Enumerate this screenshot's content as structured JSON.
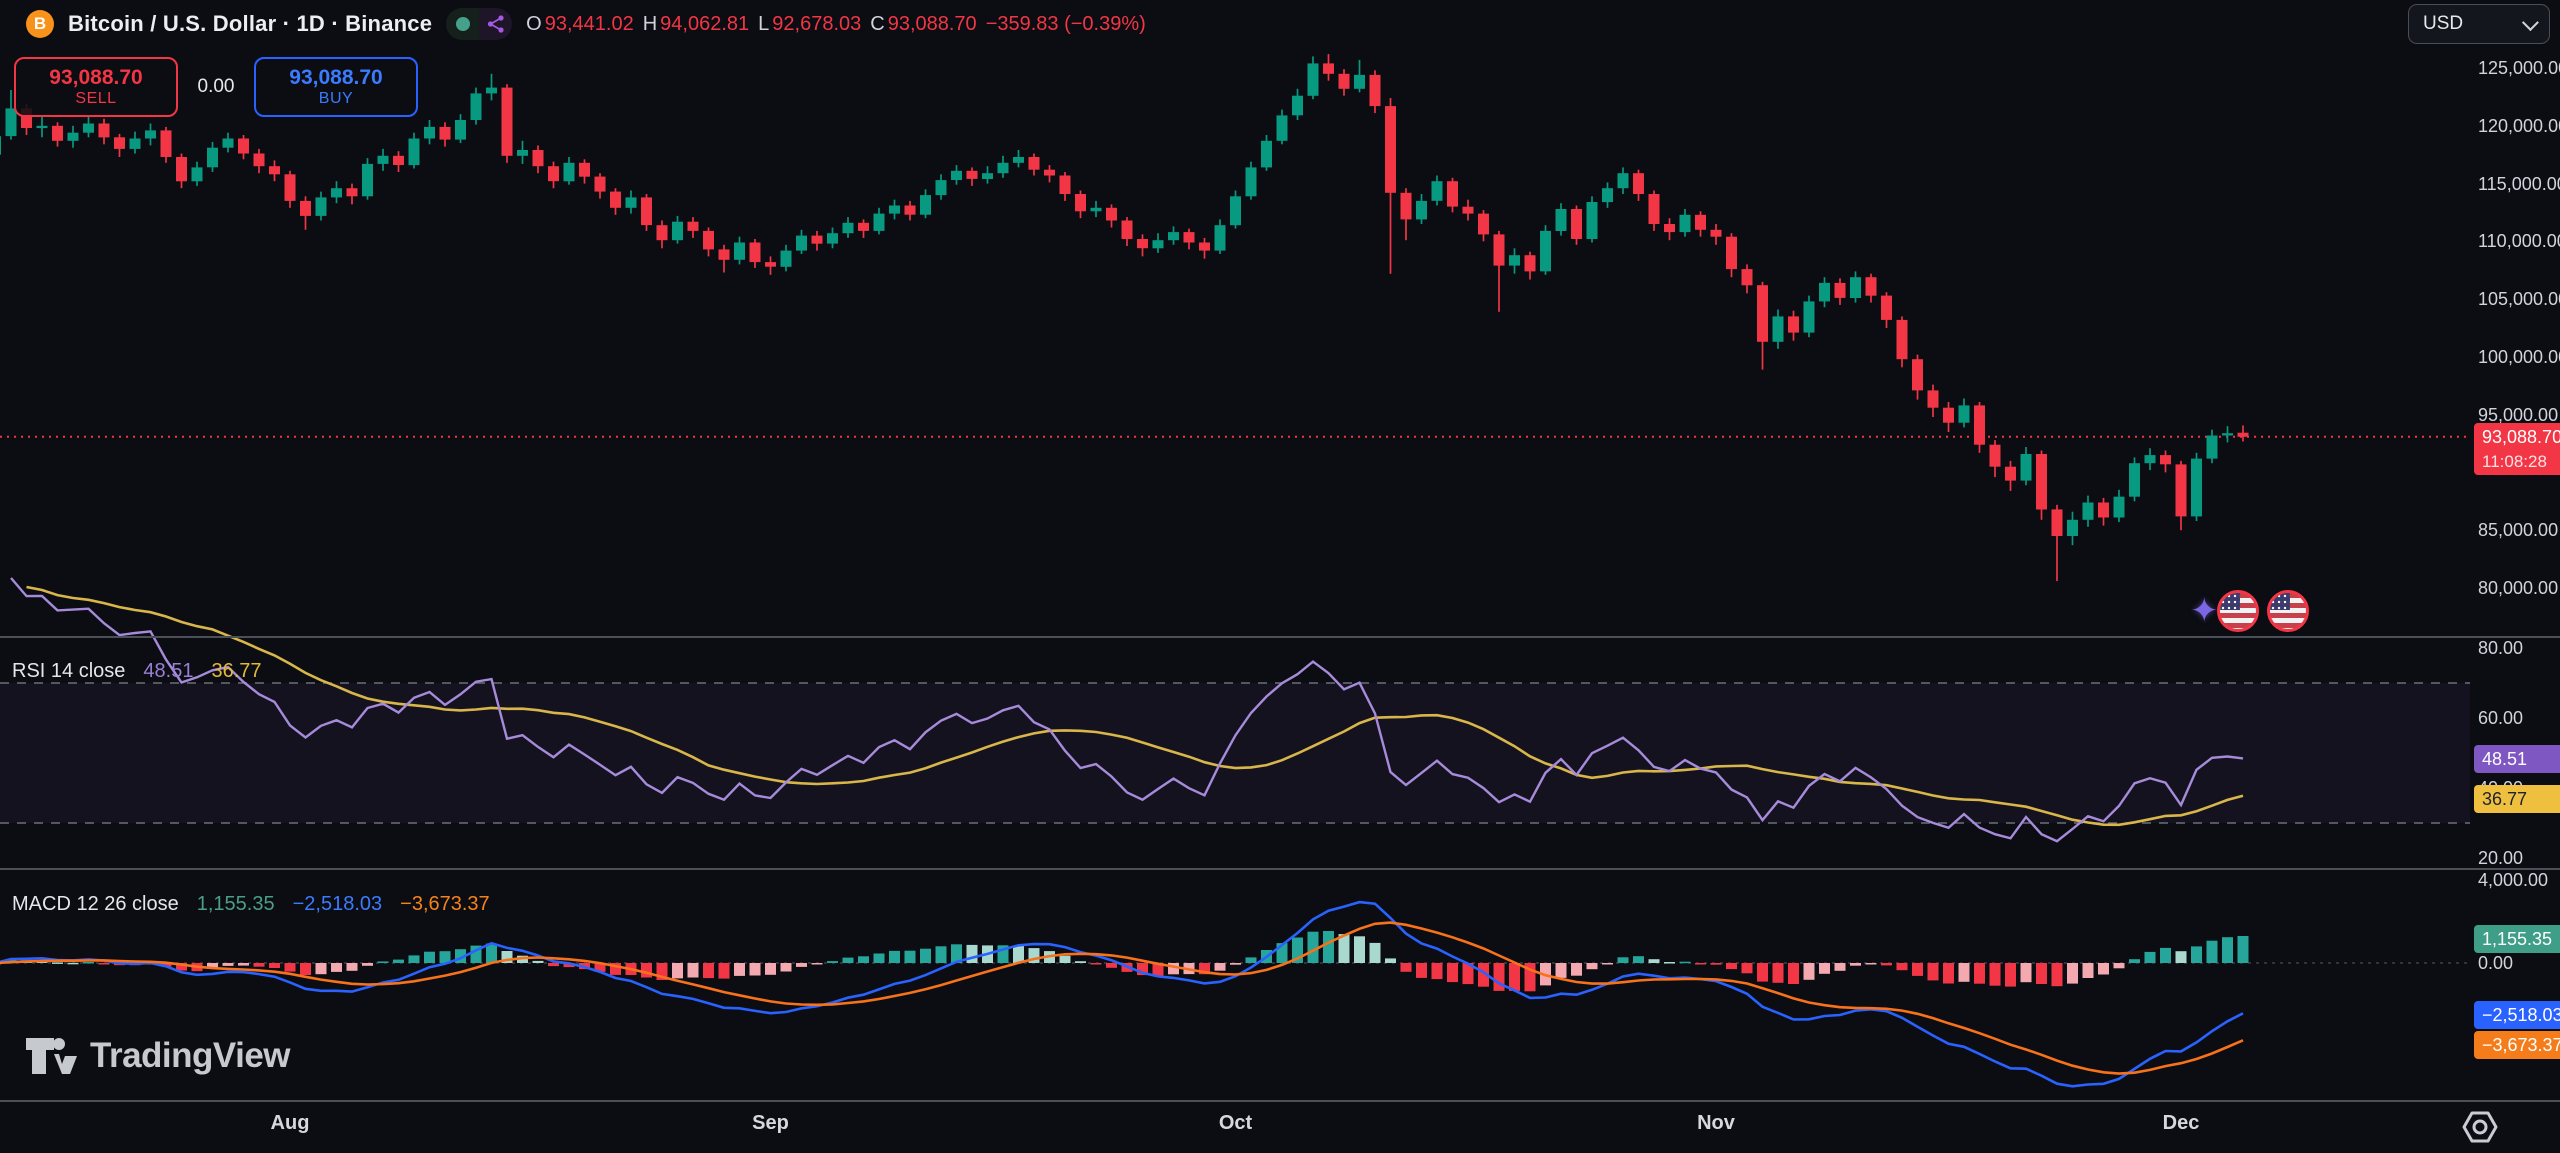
{
  "header": {
    "title": "Bitcoin / U.S. Dollar · 1D · Binance",
    "ohlc": {
      "open_label": "O",
      "open": "93,441.02",
      "high_label": "H",
      "high": "94,062.81",
      "low_label": "L",
      "low": "92,678.03",
      "close_label": "C",
      "close": "93,088.70",
      "change": "−359.83 (−0.39%)"
    }
  },
  "trade_buttons": {
    "sell_price": "93,088.70",
    "sell_label": "SELL",
    "spread": "0.00",
    "buy_price": "93,088.70",
    "buy_label": "BUY"
  },
  "currency_selector": {
    "value": "USD"
  },
  "price_scale": {
    "ticks": [
      {
        "label": "125,000.00",
        "value": 125000
      },
      {
        "label": "120,000.00",
        "value": 120000
      },
      {
        "label": "115,000.00",
        "value": 115000
      },
      {
        "label": "110,000.00",
        "value": 110000
      },
      {
        "label": "105,000.00",
        "value": 105000
      },
      {
        "label": "100,000.00",
        "value": 100000
      },
      {
        "label": "95,000.00",
        "value": 95000
      },
      {
        "label": "85,000.00",
        "value": 85000
      },
      {
        "label": "80,000.00",
        "value": 80000
      }
    ],
    "last_price_badge": {
      "price": "93,088.70",
      "countdown": "11:08:28"
    }
  },
  "rsi_panel": {
    "title": "RSI 14 close",
    "rsi_value": "48.51",
    "ma_value": "36.77",
    "ticks": [
      {
        "label": "80.00",
        "value": 80
      },
      {
        "label": "60.00",
        "value": 60
      },
      {
        "label": "40.00",
        "value": 40
      },
      {
        "label": "20.00",
        "value": 20
      }
    ]
  },
  "macd_panel": {
    "title": "MACD 12 26 close",
    "histogram_value": "1,155.35",
    "macd_value": "−2,518.03",
    "signal_value": "−3,673.37",
    "ticks": [
      {
        "label": "4,000.00",
        "value": 4000
      },
      {
        "label": "0.00",
        "value": 0
      }
    ]
  },
  "time_axis": {
    "months": [
      {
        "label": "Aug",
        "day": 19
      },
      {
        "label": "Sep",
        "day": 50
      },
      {
        "label": "Oct",
        "day": 80
      },
      {
        "label": "Nov",
        "day": 111
      },
      {
        "label": "Dec",
        "day": 141
      }
    ]
  },
  "watermark": {
    "text": "TradingView"
  },
  "colors": {
    "up": "#089981",
    "down": "#f23645",
    "rsi_line": "#a78bdb",
    "rsi_ma_line": "#d9b64a",
    "macd_line": "#2962ff",
    "signal_line": "#f7721b",
    "hist_up": "#26a69a",
    "hist_up_fade": "#a9d8cf",
    "hist_down": "#f23645",
    "hist_down_fade": "#f4a9b0",
    "price_line": "#f23645",
    "axis_text": "#d1d4dc",
    "background": "#0b0d12"
  },
  "chart_data": {
    "type": "candlestick",
    "symbol": "BTCUSD",
    "interval": "1D",
    "exchange": "Binance",
    "price_line": 93088.7,
    "y_axis": {
      "min": 80000,
      "max": 125000
    },
    "indicators": {
      "rsi": {
        "length": 14,
        "source": "close",
        "upper_band": 70,
        "lower_band": 30,
        "ma_length": 14
      },
      "macd": {
        "fast": 12,
        "slow": 26,
        "signal": 9
      }
    },
    "candles": [
      [
        117500,
        119600,
        116900,
        119100
      ],
      [
        119100,
        123100,
        118800,
        121500
      ],
      [
        121500,
        121900,
        119200,
        119800
      ],
      [
        119800,
        120900,
        119000,
        120000
      ],
      [
        120000,
        120300,
        118200,
        118700
      ],
      [
        118700,
        120000,
        118100,
        119400
      ],
      [
        119400,
        120800,
        119000,
        120200
      ],
      [
        120200,
        120600,
        118400,
        119000
      ],
      [
        119000,
        119300,
        117300,
        118000
      ],
      [
        118000,
        119500,
        117600,
        118900
      ],
      [
        118900,
        120200,
        118300,
        119600
      ],
      [
        119600,
        119900,
        116800,
        117300
      ],
      [
        117300,
        117600,
        114600,
        115200
      ],
      [
        115200,
        116900,
        114800,
        116400
      ],
      [
        116400,
        118600,
        116000,
        118100
      ],
      [
        118100,
        119400,
        117700,
        118900
      ],
      [
        118900,
        119200,
        117100,
        117600
      ],
      [
        117600,
        118000,
        115900,
        116500
      ],
      [
        116500,
        117000,
        115200,
        115800
      ],
      [
        115800,
        116100,
        112900,
        113500
      ],
      [
        113500,
        113900,
        111000,
        112200
      ],
      [
        112200,
        114300,
        111800,
        113800
      ],
      [
        113800,
        115200,
        113300,
        114600
      ],
      [
        114600,
        115000,
        113200,
        113900
      ],
      [
        113900,
        117200,
        113600,
        116700
      ],
      [
        116700,
        118000,
        116100,
        117400
      ],
      [
        117400,
        117800,
        116000,
        116600
      ],
      [
        116600,
        119400,
        116300,
        118900
      ],
      [
        118900,
        120500,
        118400,
        119900
      ],
      [
        119900,
        120300,
        118200,
        118800
      ],
      [
        118800,
        121000,
        118500,
        120500
      ],
      [
        120500,
        123300,
        120100,
        122800
      ],
      [
        122800,
        124500,
        122200,
        123300
      ],
      [
        123300,
        123600,
        116800,
        117400
      ],
      [
        117400,
        118700,
        116700,
        117900
      ],
      [
        117900,
        118300,
        115900,
        116500
      ],
      [
        116500,
        116900,
        114600,
        115200
      ],
      [
        115200,
        117300,
        114900,
        116800
      ],
      [
        116800,
        117100,
        115000,
        115600
      ],
      [
        115600,
        115900,
        113700,
        114300
      ],
      [
        114300,
        114600,
        112300,
        112900
      ],
      [
        112900,
        114400,
        112400,
        113800
      ],
      [
        113800,
        114100,
        110900,
        111400
      ],
      [
        111400,
        111800,
        109400,
        110100
      ],
      [
        110100,
        112200,
        109800,
        111700
      ],
      [
        111700,
        112100,
        110300,
        110900
      ],
      [
        110900,
        111200,
        108700,
        109300
      ],
      [
        109300,
        109700,
        107300,
        108400
      ],
      [
        108400,
        110400,
        108000,
        109900
      ],
      [
        109900,
        110200,
        107700,
        108200
      ],
      [
        108200,
        108700,
        107100,
        107800
      ],
      [
        107800,
        109700,
        107400,
        109200
      ],
      [
        109200,
        111000,
        108900,
        110500
      ],
      [
        110500,
        110900,
        109200,
        109800
      ],
      [
        109800,
        111200,
        109400,
        110700
      ],
      [
        110700,
        112100,
        110300,
        111600
      ],
      [
        111600,
        111900,
        110300,
        110900
      ],
      [
        110900,
        112900,
        110600,
        112400
      ],
      [
        112400,
        113600,
        111900,
        113100
      ],
      [
        113100,
        113500,
        111800,
        112300
      ],
      [
        112300,
        114500,
        112000,
        114000
      ],
      [
        114000,
        115800,
        113600,
        115300
      ],
      [
        115300,
        116600,
        114900,
        116100
      ],
      [
        116100,
        116400,
        114800,
        115400
      ],
      [
        115400,
        116500,
        115000,
        115900
      ],
      [
        115900,
        117400,
        115500,
        116800
      ],
      [
        116800,
        117900,
        116400,
        117300
      ],
      [
        117300,
        117600,
        115700,
        116200
      ],
      [
        116200,
        116600,
        115100,
        115700
      ],
      [
        115700,
        116000,
        113500,
        114100
      ],
      [
        114100,
        114400,
        112000,
        112600
      ],
      [
        112600,
        113500,
        112100,
        112900
      ],
      [
        112900,
        113200,
        111200,
        111800
      ],
      [
        111800,
        112100,
        109600,
        110200
      ],
      [
        110200,
        110600,
        108700,
        109400
      ],
      [
        109400,
        110700,
        109000,
        110100
      ],
      [
        110100,
        111300,
        109700,
        110800
      ],
      [
        110800,
        111100,
        109300,
        109900
      ],
      [
        109900,
        110300,
        108500,
        109200
      ],
      [
        109200,
        111900,
        108900,
        111400
      ],
      [
        111400,
        114400,
        111100,
        113900
      ],
      [
        113900,
        116900,
        113600,
        116400
      ],
      [
        116400,
        119200,
        116100,
        118700
      ],
      [
        118700,
        121400,
        118400,
        120900
      ],
      [
        120900,
        123200,
        120500,
        122600
      ],
      [
        122600,
        126000,
        122300,
        125400
      ],
      [
        125400,
        126200,
        123900,
        124500
      ],
      [
        124500,
        124900,
        122600,
        123200
      ],
      [
        123200,
        125700,
        122900,
        124400
      ],
      [
        124400,
        124800,
        121100,
        121700
      ],
      [
        121700,
        122400,
        107200,
        114200
      ],
      [
        114200,
        114600,
        110100,
        111900
      ],
      [
        111900,
        114100,
        111500,
        113500
      ],
      [
        113500,
        115700,
        113100,
        115200
      ],
      [
        115200,
        115500,
        112500,
        113000
      ],
      [
        113000,
        113600,
        111800,
        112400
      ],
      [
        112400,
        112700,
        110000,
        110600
      ],
      [
        110600,
        110900,
        103900,
        107900
      ],
      [
        107900,
        109400,
        107200,
        108800
      ],
      [
        108800,
        109100,
        106700,
        107400
      ],
      [
        107400,
        111400,
        107100,
        110900
      ],
      [
        110900,
        113300,
        110500,
        112800
      ],
      [
        112800,
        113100,
        109700,
        110200
      ],
      [
        110200,
        113900,
        109900,
        113400
      ],
      [
        113400,
        115100,
        112900,
        114600
      ],
      [
        114600,
        116400,
        114100,
        115900
      ],
      [
        115900,
        116200,
        113500,
        114100
      ],
      [
        114100,
        114400,
        110900,
        111500
      ],
      [
        111500,
        112000,
        110100,
        110800
      ],
      [
        110800,
        112800,
        110400,
        112300
      ],
      [
        112300,
        112600,
        110400,
        111000
      ],
      [
        111000,
        111500,
        109700,
        110400
      ],
      [
        110400,
        110700,
        106900,
        107600
      ],
      [
        107600,
        108000,
        105500,
        106200
      ],
      [
        106200,
        106500,
        98900,
        101300
      ],
      [
        101300,
        104100,
        100700,
        103500
      ],
      [
        103500,
        104000,
        101400,
        102100
      ],
      [
        102100,
        105300,
        101700,
        104800
      ],
      [
        104800,
        106900,
        104300,
        106400
      ],
      [
        106400,
        106800,
        104500,
        105100
      ],
      [
        105100,
        107400,
        104700,
        106900
      ],
      [
        106900,
        107200,
        104700,
        105300
      ],
      [
        105300,
        105600,
        102500,
        103200
      ],
      [
        103200,
        103500,
        99100,
        99800
      ],
      [
        99800,
        100200,
        96300,
        97100
      ],
      [
        97100,
        97600,
        94800,
        95600
      ],
      [
        95600,
        96100,
        93500,
        94300
      ],
      [
        94300,
        96400,
        93900,
        95800
      ],
      [
        95800,
        96100,
        91700,
        92400
      ],
      [
        92400,
        92800,
        89600,
        90500
      ],
      [
        90500,
        91000,
        88400,
        89300
      ],
      [
        89300,
        92200,
        88900,
        91600
      ],
      [
        91600,
        91900,
        85900,
        86800
      ],
      [
        86800,
        87200,
        80600,
        84500
      ],
      [
        84500,
        86600,
        83700,
        85900
      ],
      [
        85900,
        88000,
        85300,
        87400
      ],
      [
        87400,
        87800,
        85400,
        86100
      ],
      [
        86100,
        88500,
        85700,
        87900
      ],
      [
        87900,
        91300,
        87500,
        90800
      ],
      [
        90800,
        92100,
        90200,
        91500
      ],
      [
        91500,
        91900,
        90000,
        90700
      ],
      [
        90700,
        91000,
        85000,
        86200
      ],
      [
        86200,
        91700,
        85800,
        91200
      ],
      [
        91200,
        93700,
        90800,
        93200
      ],
      [
        93200,
        94000,
        92600,
        93400
      ],
      [
        93441,
        94063,
        92678,
        93089
      ]
    ]
  }
}
